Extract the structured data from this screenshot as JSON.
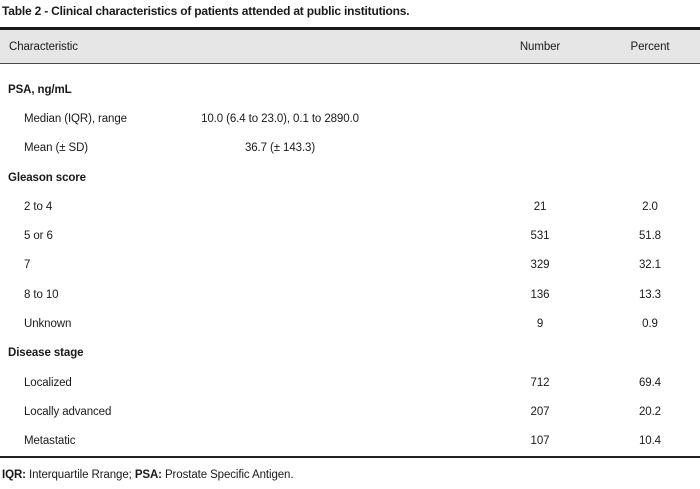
{
  "title": "Table 2 - Clinical characteristics of patients attended at public institutions.",
  "header": {
    "characteristic": "Characteristic",
    "number": "Number",
    "percent": "Percent"
  },
  "rows": [
    {
      "type": "category",
      "label": "PSA, ng/mL",
      "value": "",
      "number": "",
      "percent": ""
    },
    {
      "type": "item",
      "label": "Median (IQR), range",
      "value": "10.0 (6.4 to 23.0), 0.1 to 2890.0",
      "number": "",
      "percent": ""
    },
    {
      "type": "item",
      "label": "Mean (± SD)",
      "value": "36.7 (± 143.3)",
      "number": "",
      "percent": ""
    },
    {
      "type": "category",
      "label": "Gleason score",
      "value": "",
      "number": "",
      "percent": ""
    },
    {
      "type": "item",
      "label": "2 to 4",
      "value": "",
      "number": "21",
      "percent": "2.0"
    },
    {
      "type": "item",
      "label": "5 or 6",
      "value": "",
      "number": "531",
      "percent": "51.8"
    },
    {
      "type": "item",
      "label": "7",
      "value": "",
      "number": "329",
      "percent": "32.1"
    },
    {
      "type": "item",
      "label": "8 to 10",
      "value": "",
      "number": "136",
      "percent": "13.3"
    },
    {
      "type": "item",
      "label": "Unknown",
      "value": "",
      "number": "9",
      "percent": "0.9"
    },
    {
      "type": "category",
      "label": "Disease stage",
      "value": "",
      "number": "",
      "percent": ""
    },
    {
      "type": "item",
      "label": "Localized",
      "value": "",
      "number": "712",
      "percent": "69.4"
    },
    {
      "type": "item",
      "label": "Locally advanced",
      "value": "",
      "number": "207",
      "percent": "20.2"
    },
    {
      "type": "item",
      "label": "Metastatic",
      "value": "",
      "number": "107",
      "percent": "10.4"
    }
  ],
  "footnote": {
    "iqr_abbr": "IQR:",
    "iqr_def": " Interquartile Rrange; ",
    "psa_abbr": "PSA:",
    "psa_def": " Prostate Specific Antigen."
  },
  "colors": {
    "header_bg": "#e6e6e6",
    "rule_dark": "#1a1a1a",
    "text": "#1a1a1a"
  }
}
